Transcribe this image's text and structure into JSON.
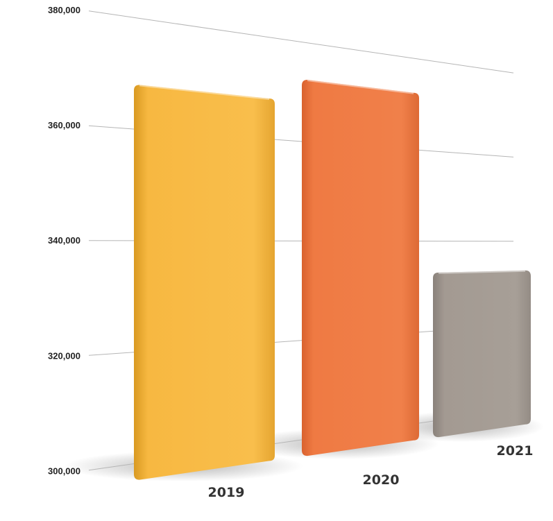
{
  "chart_data": {
    "type": "bar",
    "categories": [
      "2019",
      "2020",
      "2021"
    ],
    "values": [
      368000,
      372500,
      333000
    ],
    "ylim": [
      300000,
      380000
    ],
    "yticks": [
      {
        "value": 300000,
        "label": "300,000"
      },
      {
        "value": 320000,
        "label": "320,000"
      },
      {
        "value": 340000,
        "label": "340,000"
      },
      {
        "value": 360000,
        "label": "360,000"
      },
      {
        "value": 380000,
        "label": "380,000"
      }
    ],
    "grid": true,
    "legend": "none",
    "title": "",
    "xlabel": "",
    "ylabel": ""
  },
  "colors": {
    "2019": "#F7B841",
    "2020": "#EF7A43",
    "2021": "#A39A92",
    "gridline": "#b5b5b5"
  }
}
